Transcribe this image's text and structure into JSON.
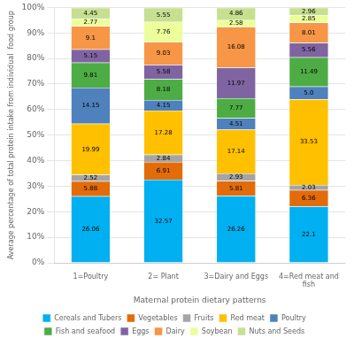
{
  "chart_data": {
    "type": "bar",
    "stacked": true,
    "orientation": "vertical",
    "categories": [
      "1=Poultry",
      "2= Plant",
      "3=Dairy and Eggs",
      "4=Red meat and\nfish"
    ],
    "series": [
      {
        "name": "Cereals and Tubers",
        "color": "#00B0F0",
        "values": [
          26.06,
          32.57,
          26.26,
          22.1
        ]
      },
      {
        "name": "Vegetables",
        "color": "#E36C0A",
        "values": [
          5.88,
          6.91,
          5.81,
          6.36
        ]
      },
      {
        "name": "Fruits",
        "color": "#A5A5A5",
        "values": [
          2.52,
          2.84,
          2.93,
          2.03
        ]
      },
      {
        "name": "Red meat",
        "color": "#FFC000",
        "values": [
          19.99,
          17.28,
          17.14,
          33.53
        ]
      },
      {
        "name": "Poultry",
        "color": "#4F81BD",
        "values": [
          14.15,
          4.15,
          4.51,
          5.0
        ],
        "value_labels": [
          "14.15",
          "4.15",
          "4.51",
          "5.0"
        ]
      },
      {
        "name": "Fish and seafood",
        "color": "#4EAC44",
        "values": [
          9.81,
          8.18,
          7.77,
          11.49
        ]
      },
      {
        "name": "Eggs",
        "color": "#8064A2",
        "values": [
          5.15,
          5.58,
          11.97,
          5.56
        ]
      },
      {
        "name": "Dairy",
        "color": "#F79646",
        "values": [
          9.1,
          9.03,
          16.08,
          8.01
        ]
      },
      {
        "name": "Soybean",
        "color": "#EBFF9A",
        "values": [
          2.77,
          7.76,
          2.58,
          2.85
        ]
      },
      {
        "name": "Nuts and Seeds",
        "color": "#C6E090",
        "values": [
          4.45,
          5.55,
          4.86,
          2.96
        ]
      }
    ],
    "xlabel": "Maternal protein dietary patterns",
    "ylabel": "Average percentage of total protein intake from individual  food group",
    "ylim": [
      0,
      100
    ],
    "yticks": [
      {
        "value": 0,
        "label": "0%"
      },
      {
        "value": 10,
        "label": "10%"
      },
      {
        "value": 20,
        "label": "20%"
      },
      {
        "value": 30,
        "label": "30%"
      },
      {
        "value": 40,
        "label": "40%"
      },
      {
        "value": 50,
        "label": "50%"
      },
      {
        "value": 60,
        "label": "60%"
      },
      {
        "value": 70,
        "label": "70%"
      },
      {
        "value": 80,
        "label": "80%"
      },
      {
        "value": 90,
        "label": "90%"
      },
      {
        "value": 100,
        "label": "100%"
      }
    ],
    "grid": true,
    "legend": "bottom",
    "data_labels": true
  }
}
